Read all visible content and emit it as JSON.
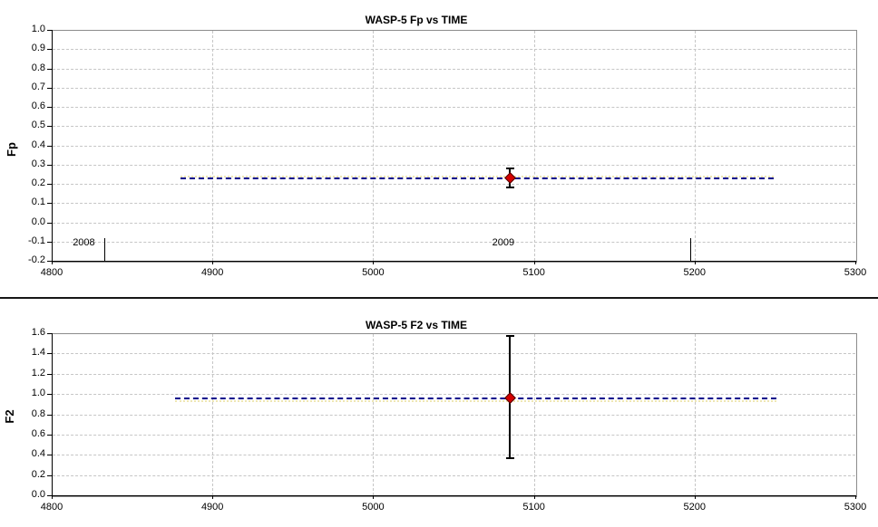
{
  "colors": {
    "grid": "#c6c6c6",
    "axis": "#000000",
    "plot_border": "#8c8c8c",
    "background": "#ffffff",
    "divider": "#161616"
  },
  "chart_data": [
    {
      "type": "scatter",
      "title": "WASP-5 Fp vs TIME",
      "xlabel": "",
      "ylabel": "Fp",
      "xlim": [
        4800,
        5300
      ],
      "ylim": [
        -0.2,
        1.0
      ],
      "xticks": [
        "4800",
        "4900",
        "5000",
        "5100",
        "5200",
        "5300"
      ],
      "yticks": [
        "1.0",
        "0.9",
        "0.8",
        "0.7",
        "0.6",
        "0.5",
        "0.4",
        "0.3",
        "0.2",
        "0.1",
        "0.0",
        "-0.1",
        "-0.2"
      ],
      "grid": true,
      "legend": false,
      "points": [
        {
          "x": 5085,
          "y": 0.23,
          "err_low": 0.18,
          "err_high": 0.28
        }
      ],
      "point_color": "#d40000",
      "point_edge_color": "#4d0000",
      "error_bar_color": "#000000",
      "mean_line": {
        "y": 0.23,
        "x_start": 4880,
        "x_end": 5249,
        "color": "#00008b",
        "style": "dashed"
      },
      "secondary_line": {
        "y": 0.24,
        "x_start": 4880,
        "x_end": 5249,
        "color": "#ede6b4"
      },
      "year_markers": [
        {
          "label": "2008",
          "label_x": 4820,
          "line_x": 4832.5,
          "line_top_y": -0.08
        },
        {
          "label": "2009",
          "label_x": 5081,
          "line_x": 5197.5,
          "line_top_y": -0.08
        }
      ]
    },
    {
      "type": "scatter",
      "title": "WASP-5 F2 vs TIME",
      "xlabel": "",
      "ylabel": "F2",
      "xlim": [
        4800,
        5300
      ],
      "ylim": [
        0.0,
        1.6
      ],
      "xticks": [
        "4800",
        "4900",
        "5000",
        "5100",
        "5200",
        "5300"
      ],
      "yticks": [
        "1.6",
        "1.4",
        "1.2",
        "1.0",
        "0.8",
        "0.6",
        "0.4",
        "0.2",
        "0.0"
      ],
      "grid": true,
      "legend": false,
      "points": [
        {
          "x": 5085,
          "y": 0.96,
          "err_low": 0.37,
          "err_high": 1.57
        }
      ],
      "point_color": "#d40000",
      "point_edge_color": "#4d0000",
      "error_bar_color": "#000000",
      "mean_line": {
        "y": 0.96,
        "x_start": 4877,
        "x_end": 5251,
        "color": "#00008b",
        "style": "dashed"
      },
      "secondary_line": {
        "y": 0.93,
        "x_start": 4877,
        "x_end": 5251,
        "color": "#ede6b4"
      },
      "year_markers": []
    }
  ]
}
